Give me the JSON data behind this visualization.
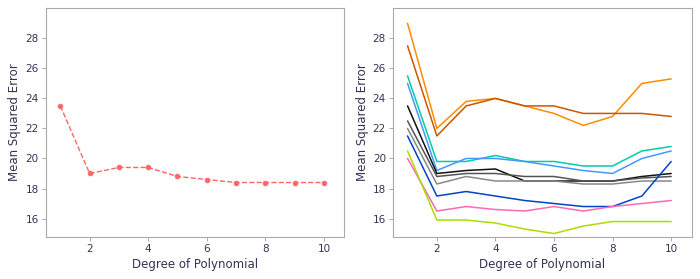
{
  "left": {
    "x": [
      1,
      2,
      3,
      4,
      5,
      6,
      7,
      8,
      9,
      10
    ],
    "y": [
      23.5,
      19.0,
      19.4,
      19.4,
      18.8,
      18.6,
      18.4,
      18.4,
      18.4,
      18.4
    ],
    "color": "#FF6666",
    "xlabel": "Degree of Polynomial",
    "ylabel": "Mean Squared Error",
    "ylim": [
      14.8,
      30.0
    ],
    "yticks": [
      16,
      18,
      20,
      22,
      24,
      26,
      28
    ],
    "xlim": [
      0.5,
      10.7
    ],
    "xticks": [
      2,
      4,
      6,
      8,
      10
    ]
  },
  "right": {
    "x": [
      1,
      2,
      3,
      4,
      5,
      6,
      7,
      8,
      9,
      10
    ],
    "lines": [
      {
        "y": [
          29.0,
          22.0,
          23.8,
          24.0,
          23.5,
          23.0,
          22.2,
          22.8,
          25.0,
          25.3
        ],
        "color": "#FF8C00"
      },
      {
        "y": [
          27.5,
          21.5,
          23.5,
          24.0,
          23.5,
          23.5,
          23.0,
          23.0,
          23.0,
          22.8
        ],
        "color": "#CC5500"
      },
      {
        "y": [
          25.5,
          19.8,
          19.8,
          20.2,
          19.8,
          19.8,
          19.5,
          19.5,
          20.5,
          20.8
        ],
        "color": "#00CCAA"
      },
      {
        "y": [
          25.0,
          19.2,
          20.0,
          20.0,
          19.8,
          19.5,
          19.2,
          19.0,
          20.0,
          20.5
        ],
        "color": "#4499FF"
      },
      {
        "y": [
          23.5,
          19.0,
          19.2,
          19.3,
          18.5,
          18.5,
          18.5,
          18.5,
          18.8,
          19.0
        ],
        "color": "#111111"
      },
      {
        "y": [
          22.5,
          18.8,
          19.0,
          19.0,
          18.8,
          18.8,
          18.5,
          18.5,
          18.7,
          18.8
        ],
        "color": "#555555"
      },
      {
        "y": [
          22.0,
          18.3,
          18.8,
          18.5,
          18.5,
          18.5,
          18.3,
          18.3,
          18.5,
          18.5
        ],
        "color": "#888888"
      },
      {
        "y": [
          21.5,
          17.5,
          17.8,
          17.5,
          17.2,
          17.0,
          16.8,
          16.8,
          17.5,
          19.8
        ],
        "color": "#0044CC"
      },
      {
        "y": [
          20.0,
          16.5,
          16.8,
          16.6,
          16.5,
          16.8,
          16.5,
          16.8,
          17.0,
          17.2
        ],
        "color": "#FF69B4"
      },
      {
        "y": [
          20.5,
          15.9,
          15.9,
          15.7,
          15.3,
          15.0,
          15.5,
          15.8,
          15.8,
          15.8
        ],
        "color": "#AADD00"
      }
    ],
    "xlabel": "Degree of Polynomial",
    "ylabel": "Mean Squared Error",
    "ylim": [
      14.8,
      30.0
    ],
    "yticks": [
      16,
      18,
      20,
      22,
      24,
      26,
      28
    ],
    "xlim": [
      0.5,
      10.7
    ],
    "xticks": [
      2,
      4,
      6,
      8,
      10
    ]
  },
  "bg_color": "#FFFFFF",
  "axis_color": "#AAAAAA",
  "text_color": "#333355",
  "fontsize_label": 8.5,
  "fontsize_tick": 7.5
}
